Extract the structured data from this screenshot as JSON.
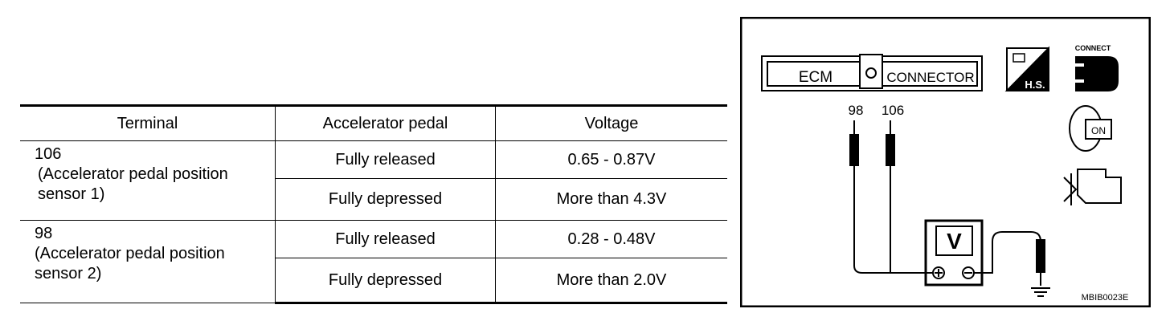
{
  "table": {
    "columns": [
      "Terminal",
      "Accelerator pedal",
      "Voltage"
    ],
    "groups": [
      {
        "terminal": "106",
        "description": "(Accelerator pedal position sensor 1)",
        "rows": [
          [
            "Fully released",
            "0.65 - 0.87V"
          ],
          [
            "Fully depressed",
            "More than 4.3V"
          ]
        ]
      },
      {
        "terminal": "98",
        "description": "(Accelerator pedal position sensor 2)",
        "rows": [
          [
            "Fully released",
            "0.28 - 0.48V"
          ],
          [
            "Fully depressed",
            "More than 2.0V"
          ]
        ]
      }
    ]
  },
  "diagram": {
    "connector_left": "ECM",
    "connector_right": "CONNECTOR",
    "pins": [
      "98",
      "106"
    ],
    "meter": "V",
    "hs_label": "H.S.",
    "connect_label": "CONNECT",
    "on_label": "ON",
    "code": "MBIB0023E"
  }
}
